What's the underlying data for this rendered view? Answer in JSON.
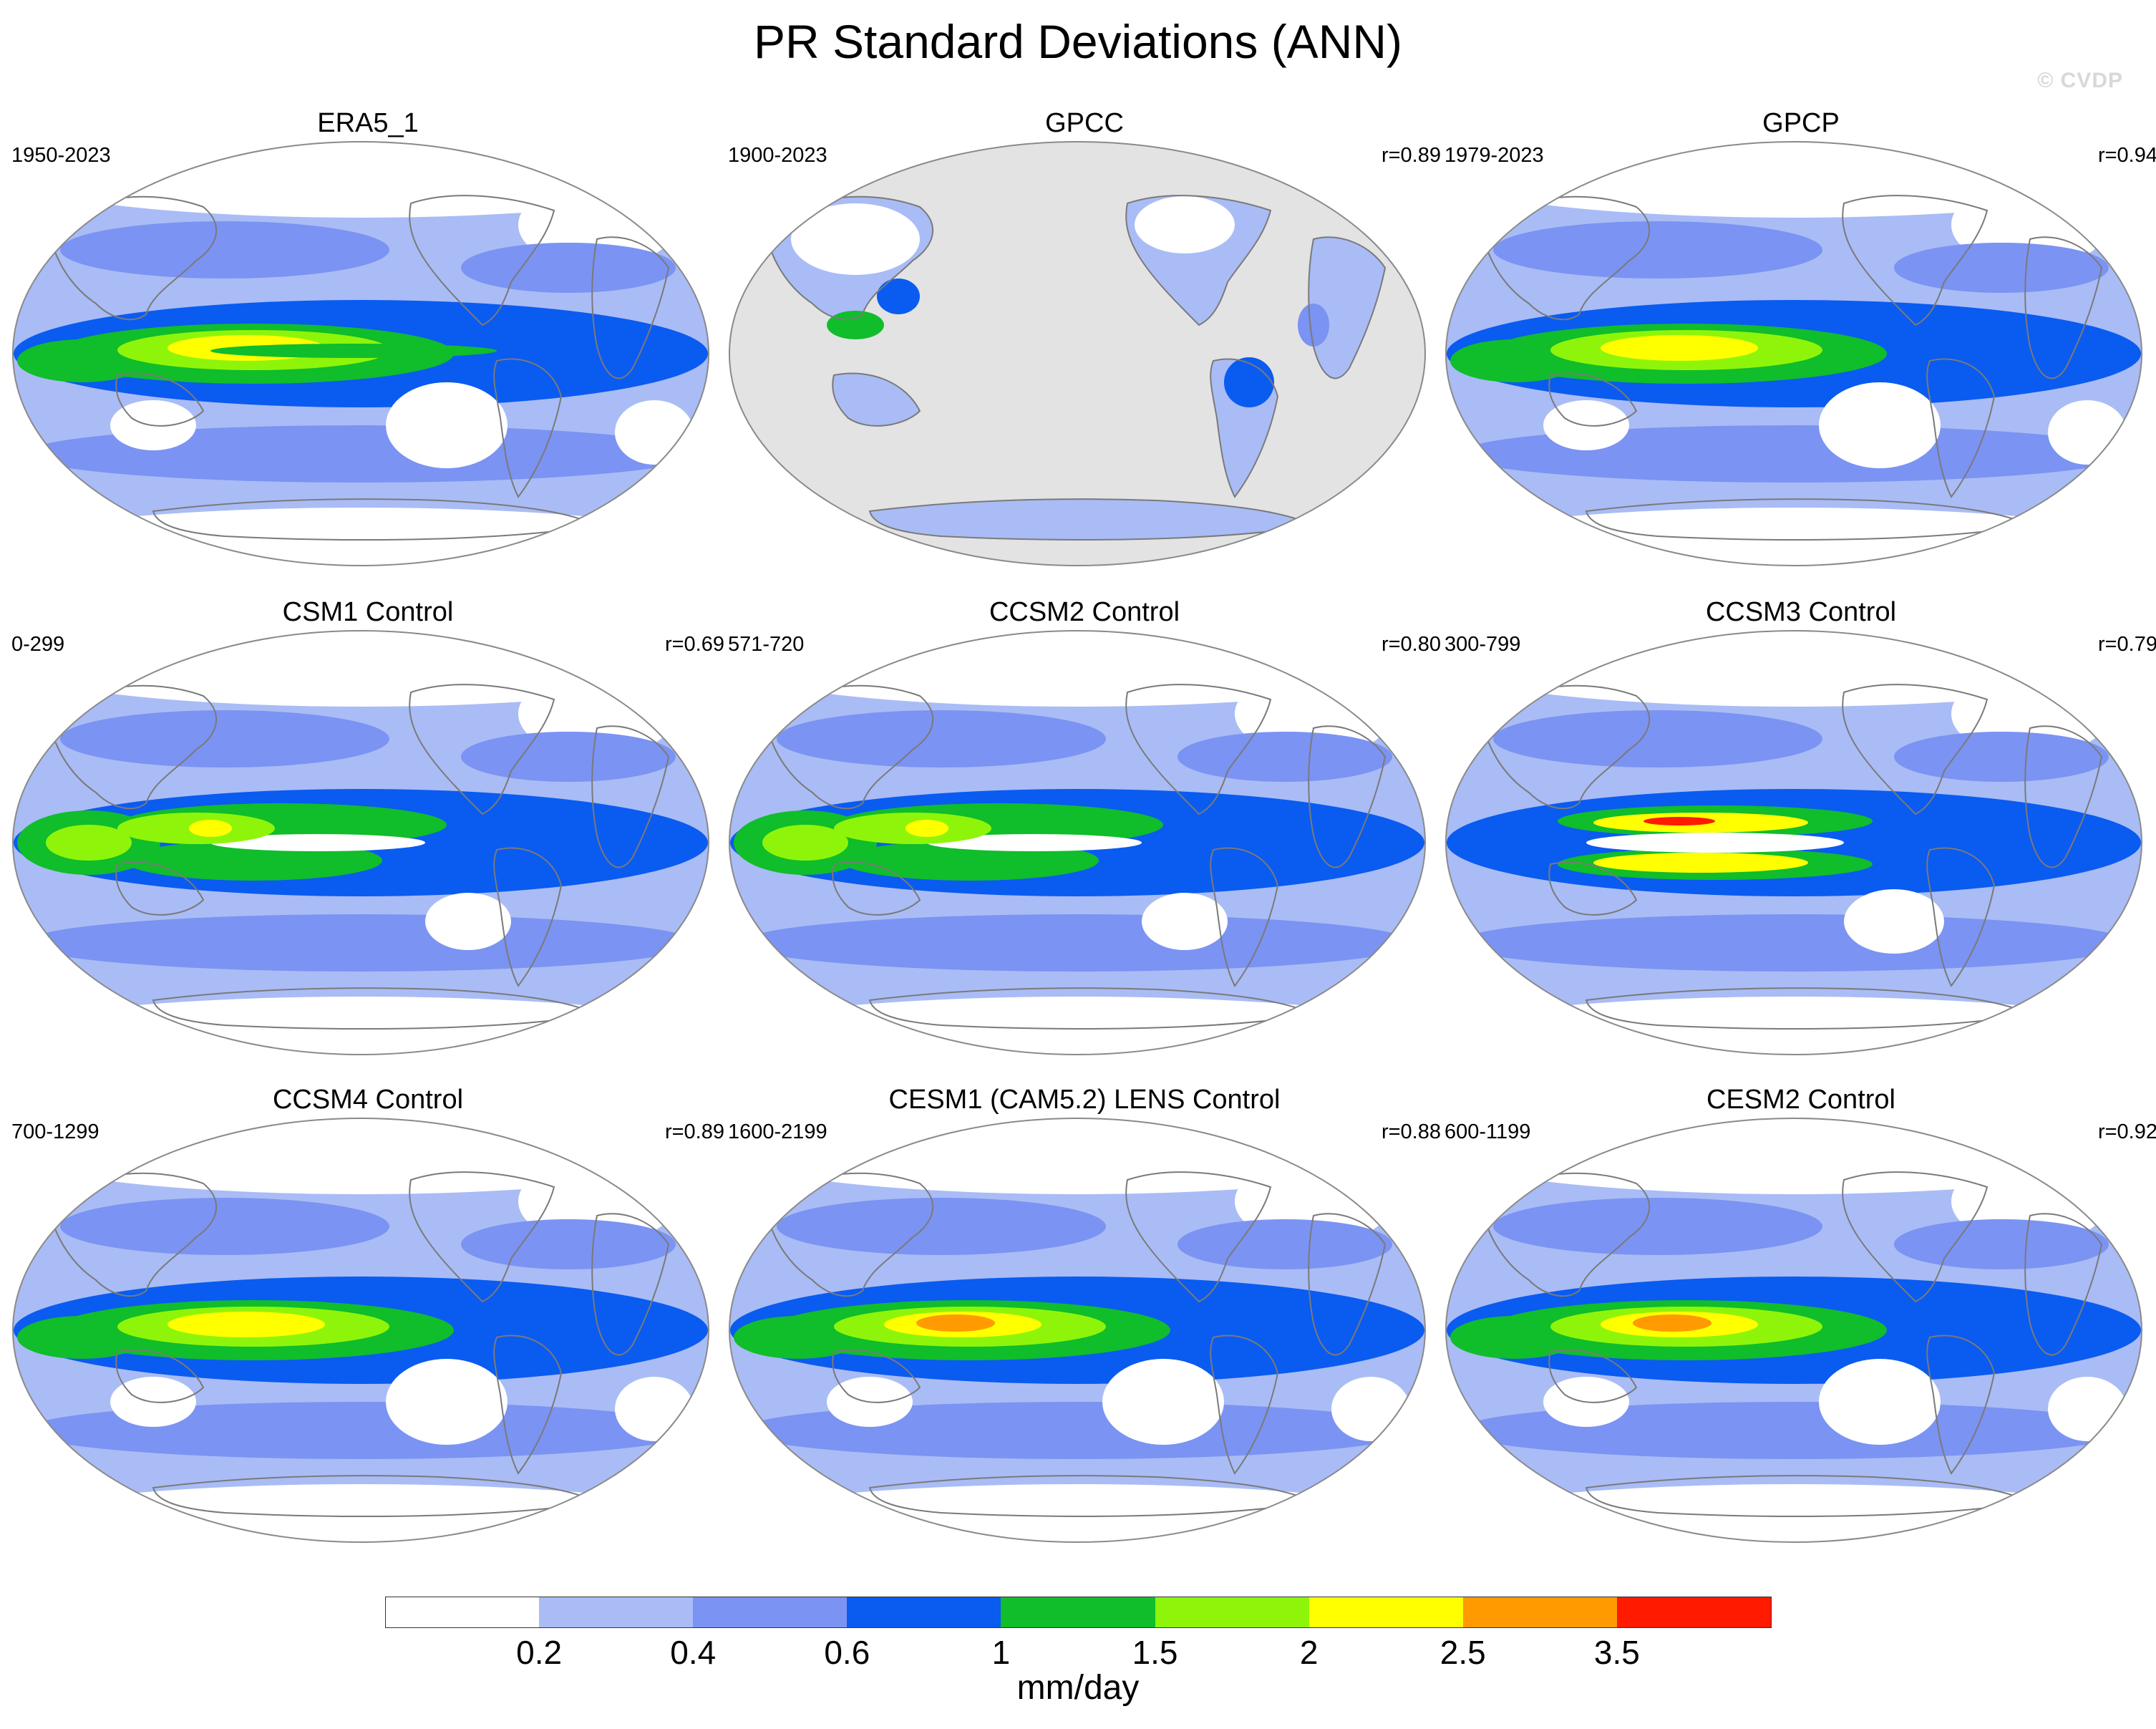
{
  "title": "PR Standard Deviations (ANN)",
  "watermark": "© CVDP",
  "panels": [
    {
      "title": "ERA5_1",
      "period": "1950-2023",
      "corr": "",
      "variant": "reanalysis"
    },
    {
      "title": "GPCC",
      "period": "1900-2023",
      "corr": "r=0.89",
      "variant": "land-only"
    },
    {
      "title": "GPCP",
      "period": "1979-2023",
      "corr": "r=0.94",
      "variant": "obs"
    },
    {
      "title": "CSM1 Control",
      "period": "0-299",
      "corr": "r=0.69",
      "variant": "double-itcz"
    },
    {
      "title": "CCSM2 Control",
      "period": "571-720",
      "corr": "r=0.80",
      "variant": "double-itcz"
    },
    {
      "title": "CCSM3 Control",
      "period": "300-799",
      "corr": "r=0.79",
      "variant": "split"
    },
    {
      "title": "CCSM4 Control",
      "period": "700-1299",
      "corr": "r=0.89",
      "variant": "model"
    },
    {
      "title": "CESM1 (CAM5.2) LENS Control",
      "period": "1600-2199",
      "corr": "r=0.88",
      "variant": "model-strong"
    },
    {
      "title": "CESM2 Control",
      "period": "600-1199",
      "corr": "r=0.92",
      "variant": "model-strong"
    }
  ],
  "colorbar": {
    "units": "mm/day",
    "labels": [
      "0.2",
      "0.4",
      "0.6",
      "1",
      "1.5",
      "2",
      "2.5",
      "3.5"
    ],
    "colors": [
      "#ffffff",
      "#a9bcf5",
      "#7b93f2",
      "#0a5bf0",
      "#10bd2a",
      "#8ef50a",
      "#ffff00",
      "#ff9a00",
      "#ff1a00"
    ]
  },
  "map_colors": {
    "ocean_fill": "#a9bcf5",
    "land_mask": "#e3e3e3",
    "coastline": "#7a7a7a",
    "border": "#8a8a8a"
  }
}
